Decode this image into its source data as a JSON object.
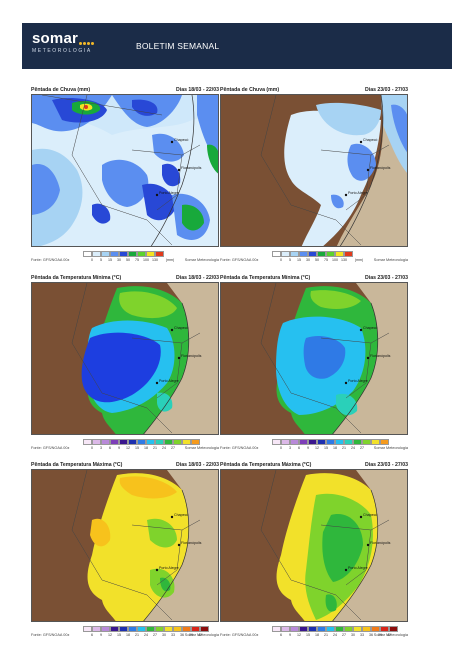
{
  "header": {
    "brand": "somar",
    "brand_sub": "METEOROLOGIA",
    "title": "BOLETIM SEMANAL",
    "accent": "#f2b829",
    "background": "#1b2c48"
  },
  "footer_source": "Fonte: GFS/NOAA 00z",
  "footer_credit": "Somar Meteorologia",
  "cities": [
    "Chapecó",
    "Florianópolis",
    "Porto Alegre"
  ],
  "rows": [
    {
      "title": "Pêntada de Chuva (mm)",
      "legend_colors": [
        "#ffffff",
        "#dbeefb",
        "#a7d3f3",
        "#5b8ef0",
        "#2848d6",
        "#18a93b",
        "#5bd22e",
        "#f4e521",
        "#e23a1c"
      ],
      "legend_ticks": [
        "0",
        "5",
        "15",
        "30",
        "50",
        "75",
        "100",
        "130",
        "(mm)"
      ],
      "panels": [
        {
          "days": "Dias 18/03 - 22/03"
        },
        {
          "days": "Dias 23/03 - 27/03"
        }
      ]
    },
    {
      "title": "Pêntada da Temperatura Mínima (°C)",
      "legend_colors": [
        "#f7e7f7",
        "#dcb9e8",
        "#b98ad9",
        "#7e3fb9",
        "#3a168e",
        "#1d2fb0",
        "#2f7ae6",
        "#26c0f0",
        "#2ad0b9",
        "#2fb73c",
        "#7fd32c",
        "#f2e12a",
        "#f59a1c"
      ],
      "legend_ticks": [
        "0",
        "3",
        "6",
        "9",
        "12",
        "15",
        "18",
        "21",
        "24",
        "27"
      ],
      "panels": [
        {
          "days": "Dias 18/03 - 22/03"
        },
        {
          "days": "Dias 23/03 - 27/03"
        }
      ]
    },
    {
      "title": "Pêntada da Temperatura Máxima (°C)",
      "legend_colors": [
        "#f7e7f7",
        "#dcb9e8",
        "#b98ad9",
        "#3a168e",
        "#1d2fb0",
        "#2f7ae6",
        "#26c0f0",
        "#2fb73c",
        "#7fd32c",
        "#f2e12a",
        "#f7c21c",
        "#f07a1a",
        "#d8251a",
        "#8c0d0d"
      ],
      "legend_ticks": [
        "6",
        "9",
        "12",
        "15",
        "18",
        "21",
        "24",
        "27",
        "30",
        "33",
        "36",
        "39",
        "42"
      ],
      "panels": [
        {
          "days": "Dias 18/03 - 22/03"
        },
        {
          "days": "Dias 23/03 - 27/03"
        }
      ]
    }
  ]
}
